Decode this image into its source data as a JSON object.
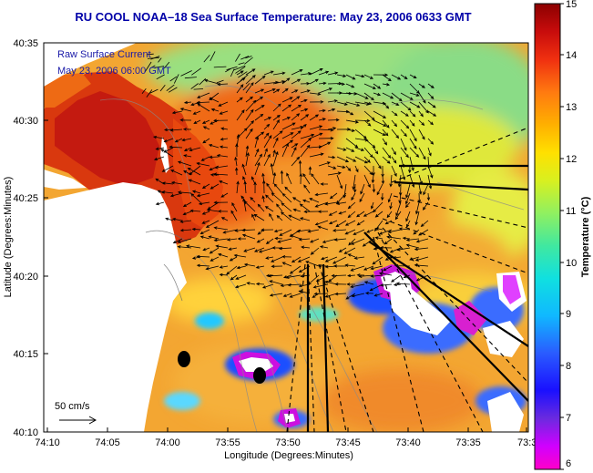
{
  "title": "RU COOL  NOAA–18  Sea Surface Temperature:  May 23, 2006 0633 GMT",
  "overlay": {
    "line1": "Raw Surface Current",
    "line2": "May 23, 2006 06:00 GMT"
  },
  "scale": {
    "label": "50 cm/s"
  },
  "axes": {
    "xlabel": "Longitude (Degrees:Minutes)",
    "ylabel": "Latitude (Degrees:Minutes)",
    "x_ticks": [
      "74:10",
      "74:05",
      "74:00",
      "73:55",
      "73:50",
      "73:45",
      "73:40",
      "73:35",
      "73:3"
    ],
    "y_ticks": [
      "40:35",
      "40:30",
      "40:25",
      "40:20",
      "40:15",
      "40:10"
    ]
  },
  "colorbar": {
    "label": "Temperature (°C)",
    "ticks": [
      "15",
      "14",
      "13",
      "12",
      "11",
      "10",
      "9",
      "8",
      "7",
      "6"
    ],
    "min": 6,
    "max": 15
  },
  "colors": {
    "land": "#ffffff",
    "warm_sst": "#f4a530",
    "hot_sst": "#d42a10",
    "cool_sst": "#86e07a",
    "title": "#0000a8"
  }
}
